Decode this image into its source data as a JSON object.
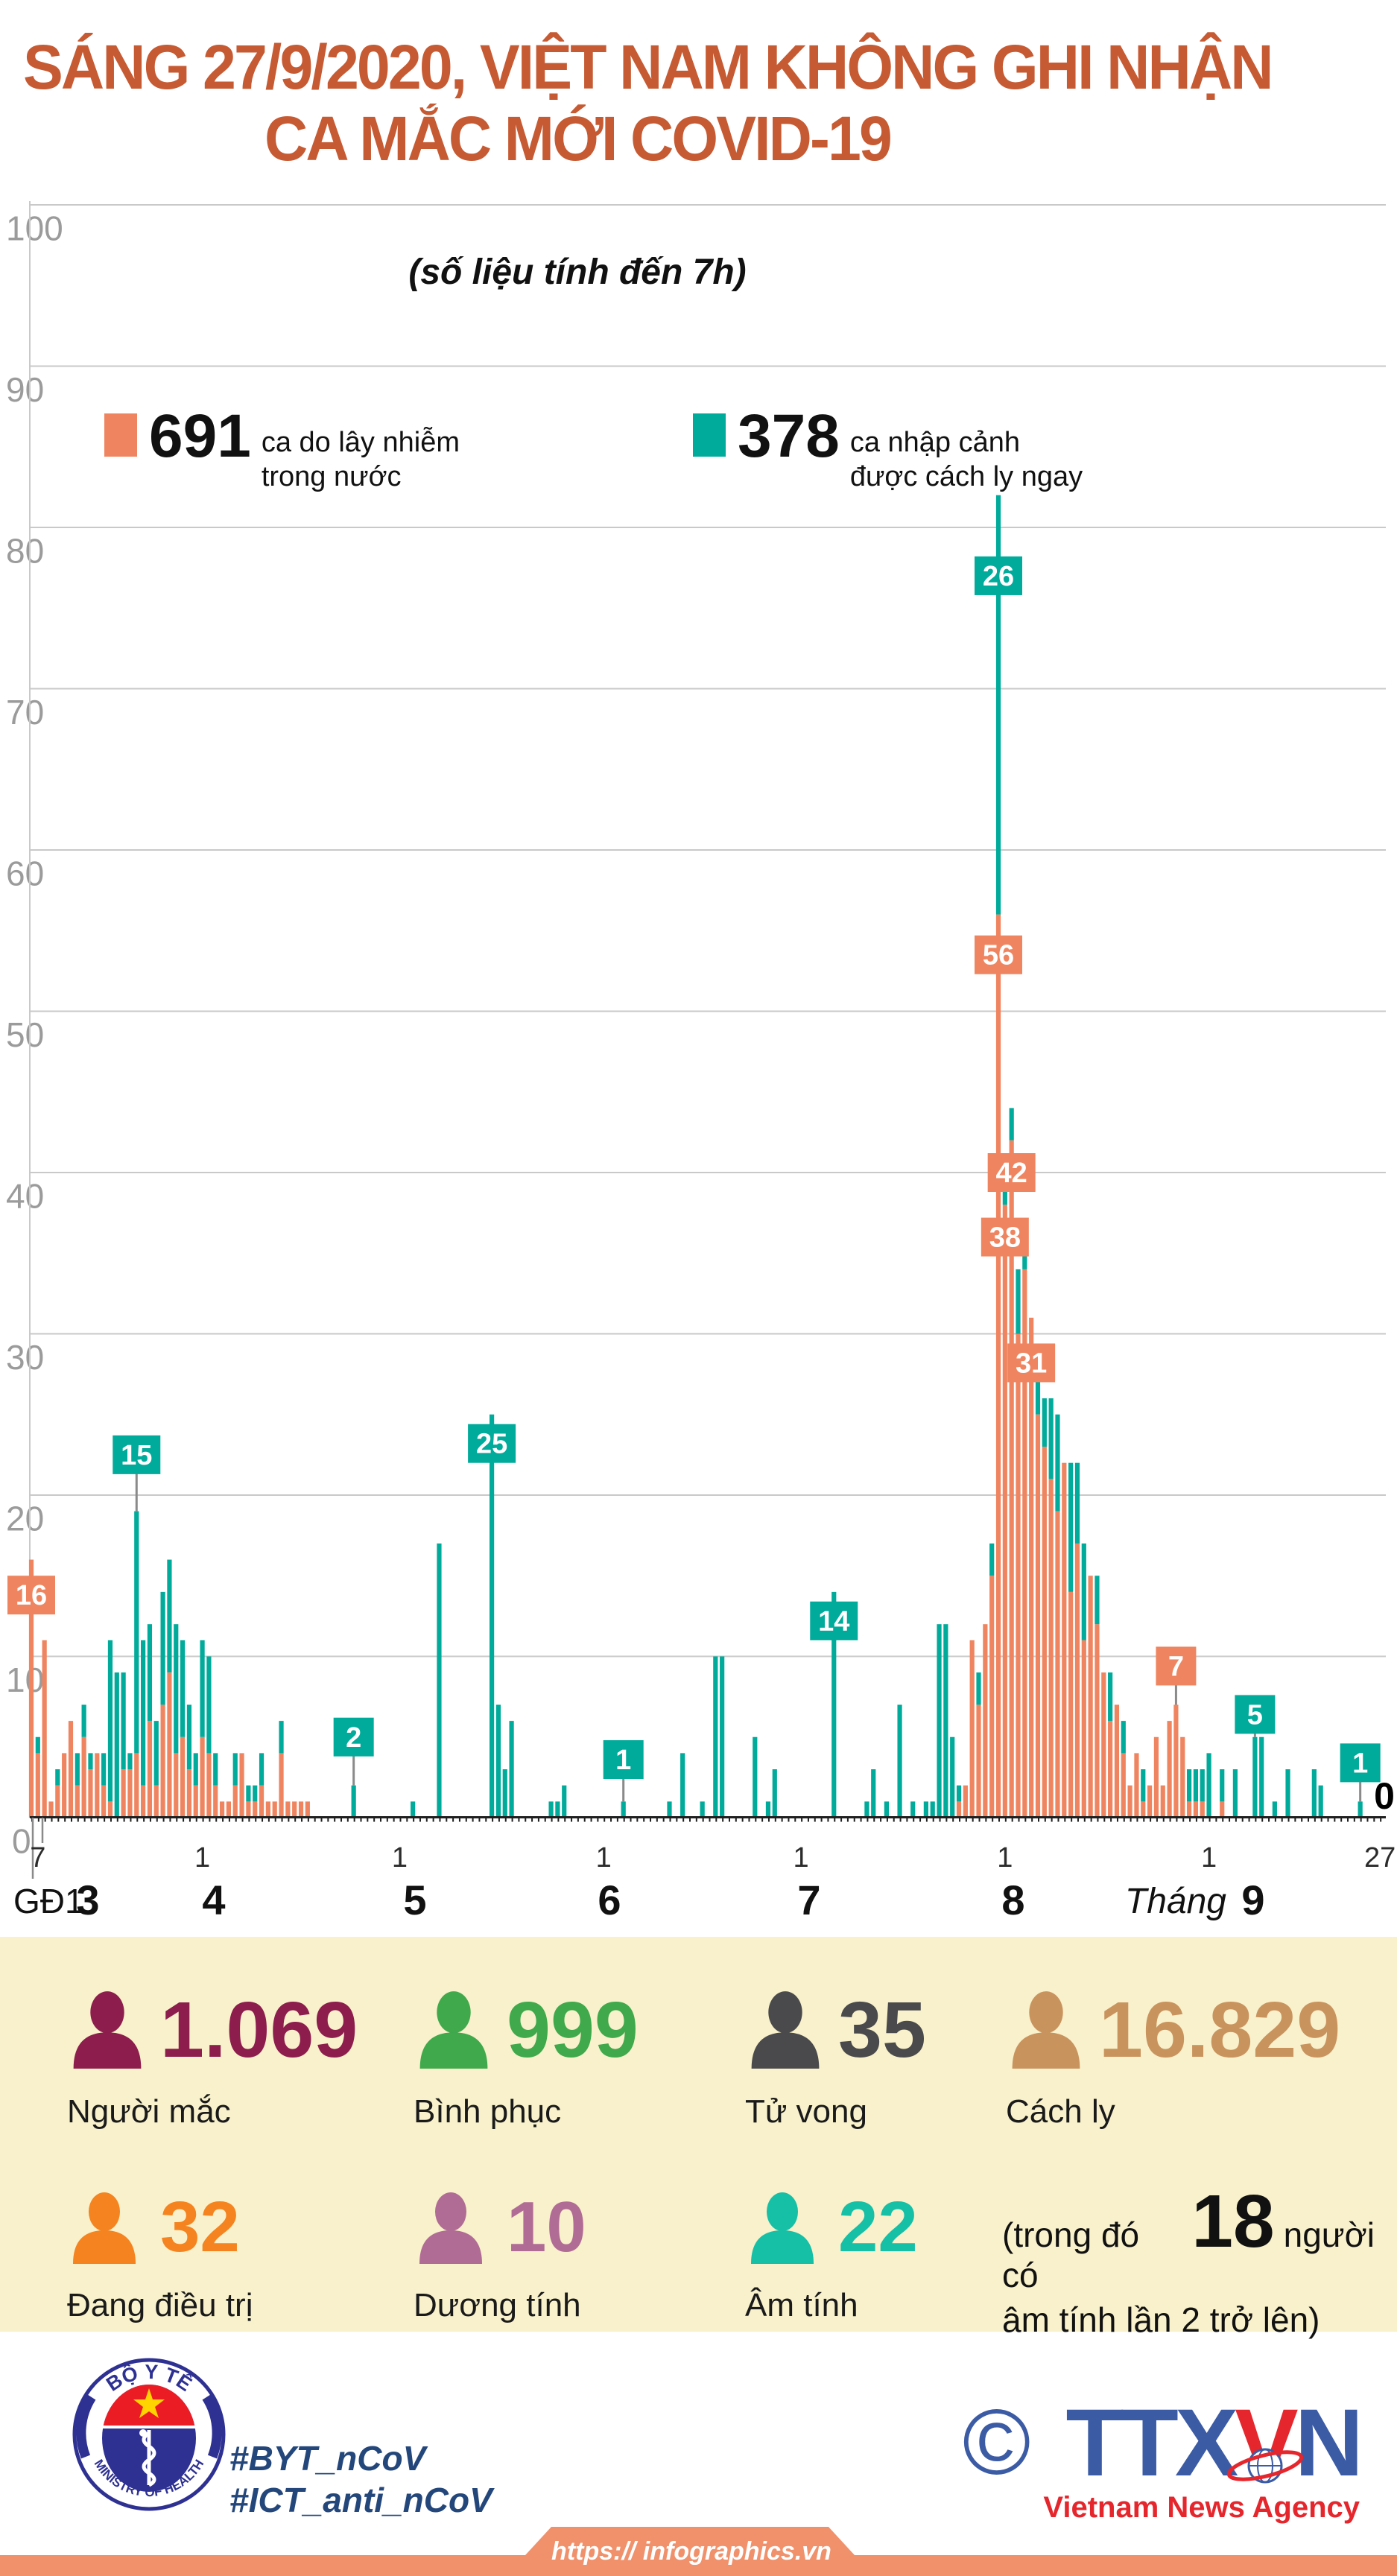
{
  "theme": {
    "title_color": "#c65a33",
    "panel_bg": "#f8f1cb",
    "strip_color": "#f0916c",
    "navy": "#24477b",
    "ttx_blue": "#3b5ba5",
    "ttx_red": "#e5262c",
    "logo_blue": "#2e3192",
    "logo_red": "#ec1c24",
    "star_yellow": "#ffd400"
  },
  "header": {
    "title_line1": "SÁNG 27/9/2020, VIỆT NAM KHÔNG GHI NHẬN",
    "title_line2": "CA MẮC MỚI COVID-19",
    "subtitle": "(số liệu tính đến 7h)"
  },
  "chart_data": {
    "type": "bar",
    "stacked": true,
    "title": "SÁNG 27/9/2020, VIỆT NAM KHÔNG GHI NHẬN CA MẮC MỚI COVID-19",
    "subtitle": "(số liệu tính đến 7h)",
    "ylim": [
      0,
      100
    ],
    "y_step": 10,
    "grid": true,
    "legend_position": "top",
    "legend": [
      {
        "value": "691",
        "text1": "ca do lây nhiễm",
        "text2": "trong nước",
        "color": "#ef8560",
        "series": "domestic"
      },
      {
        "value": "378",
        "text1": "ca nhập cảnh",
        "text2": "được cách ly ngay",
        "color": "#00ab9b",
        "series": "imported"
      }
    ],
    "x_axis": {
      "phase_label": {
        "text": "GĐ1",
        "x": 18
      },
      "month_word": {
        "text": "Tháng",
        "x": 1646
      },
      "months": [
        {
          "label": "3",
          "x": 118
        },
        {
          "label": "4",
          "x": 287
        },
        {
          "label": "5",
          "x": 557
        },
        {
          "label": "6",
          "x": 818
        },
        {
          "label": "7",
          "x": 1086
        },
        {
          "label": "8",
          "x": 1360
        },
        {
          "label": "9",
          "x": 1682
        }
      ],
      "ticks": [
        {
          "label": "7",
          "day": 1
        },
        {
          "label": "1",
          "day": 26
        },
        {
          "label": "1",
          "day": 56
        },
        {
          "label": "1",
          "day": 87
        },
        {
          "label": "1",
          "day": 117
        },
        {
          "label": "1",
          "day": 148
        },
        {
          "label": "1",
          "day": 179
        },
        {
          "label": "27",
          "day": 205
        }
      ]
    },
    "series_note": "index 0 = GĐ1 (phase-1 total), then daily values 7/3/2020 - 27/9/2020; pairs are [domestic, imported_quarantined]",
    "days": [
      [
        16,
        0
      ],
      [
        4,
        1
      ],
      [
        11,
        0
      ],
      [
        1,
        0
      ],
      [
        2,
        1
      ],
      [
        4,
        0
      ],
      [
        6,
        0
      ],
      [
        2,
        2
      ],
      [
        5,
        2
      ],
      [
        3,
        1
      ],
      [
        4,
        0
      ],
      [
        2,
        2
      ],
      [
        1,
        10
      ],
      [
        0,
        9
      ],
      [
        3,
        6
      ],
      [
        3,
        1
      ],
      [
        4,
        15
      ],
      [
        2,
        9
      ],
      [
        6,
        6
      ],
      [
        2,
        4
      ],
      [
        7,
        7
      ],
      [
        9,
        7
      ],
      [
        4,
        8
      ],
      [
        5,
        6
      ],
      [
        3,
        4
      ],
      [
        2,
        2
      ],
      [
        5,
        6
      ],
      [
        4,
        6
      ],
      [
        2,
        2
      ],
      [
        1,
        0
      ],
      [
        1,
        0
      ],
      [
        2,
        2
      ],
      [
        4,
        0
      ],
      [
        1,
        1
      ],
      [
        1,
        1
      ],
      [
        2,
        2
      ],
      [
        1,
        0
      ],
      [
        1,
        0
      ],
      [
        4,
        2
      ],
      [
        1,
        0
      ],
      [
        1,
        0
      ],
      [
        1,
        0
      ],
      [
        1,
        0
      ],
      [
        0,
        0
      ],
      [
        0,
        0
      ],
      [
        0,
        0
      ],
      [
        0,
        0
      ],
      [
        0,
        0
      ],
      [
        0,
        0
      ],
      [
        0,
        2
      ],
      [
        0,
        0
      ],
      [
        0,
        0
      ],
      [
        0,
        0
      ],
      [
        0,
        0
      ],
      [
        0,
        0
      ],
      [
        0,
        0
      ],
      [
        0,
        0
      ],
      [
        0,
        0
      ],
      [
        0,
        1
      ],
      [
        0,
        0
      ],
      [
        0,
        0
      ],
      [
        0,
        0
      ],
      [
        0,
        17
      ],
      [
        0,
        0
      ],
      [
        0,
        0
      ],
      [
        0,
        0
      ],
      [
        0,
        0
      ],
      [
        0,
        0
      ],
      [
        0,
        0
      ],
      [
        0,
        0
      ],
      [
        0,
        25
      ],
      [
        0,
        7
      ],
      [
        0,
        3
      ],
      [
        0,
        6
      ],
      [
        0,
        0
      ],
      [
        0,
        0
      ],
      [
        0,
        0
      ],
      [
        0,
        0
      ],
      [
        0,
        0
      ],
      [
        0,
        1
      ],
      [
        0,
        1
      ],
      [
        0,
        2
      ],
      [
        0,
        0
      ],
      [
        0,
        0
      ],
      [
        0,
        0
      ],
      [
        0,
        0
      ],
      [
        0,
        0
      ],
      [
        0,
        0
      ],
      [
        0,
        0
      ],
      [
        0,
        0
      ],
      [
        0,
        1
      ],
      [
        0,
        0
      ],
      [
        0,
        0
      ],
      [
        0,
        0
      ],
      [
        0,
        0
      ],
      [
        0,
        0
      ],
      [
        0,
        0
      ],
      [
        0,
        1
      ],
      [
        0,
        0
      ],
      [
        0,
        4
      ],
      [
        0,
        0
      ],
      [
        0,
        0
      ],
      [
        0,
        1
      ],
      [
        0,
        0
      ],
      [
        0,
        10
      ],
      [
        0,
        10
      ],
      [
        0,
        0
      ],
      [
        0,
        0
      ],
      [
        0,
        0
      ],
      [
        0,
        0
      ],
      [
        0,
        5
      ],
      [
        0,
        0
      ],
      [
        0,
        1
      ],
      [
        0,
        3
      ],
      [
        0,
        0
      ],
      [
        0,
        0
      ],
      [
        0,
        0
      ],
      [
        0,
        0
      ],
      [
        0,
        0
      ],
      [
        0,
        0
      ],
      [
        0,
        0
      ],
      [
        0,
        0
      ],
      [
        0,
        14
      ],
      [
        0,
        0
      ],
      [
        0,
        0
      ],
      [
        0,
        0
      ],
      [
        0,
        0
      ],
      [
        0,
        1
      ],
      [
        0,
        3
      ],
      [
        0,
        0
      ],
      [
        0,
        1
      ],
      [
        0,
        0
      ],
      [
        0,
        7
      ],
      [
        0,
        0
      ],
      [
        0,
        1
      ],
      [
        0,
        0
      ],
      [
        0,
        1
      ],
      [
        0,
        1
      ],
      [
        0,
        12
      ],
      [
        0,
        12
      ],
      [
        0,
        5
      ],
      [
        1,
        1
      ],
      [
        2,
        0
      ],
      [
        11,
        0
      ],
      [
        7,
        2
      ],
      [
        12,
        0
      ],
      [
        15,
        2
      ],
      [
        56,
        26
      ],
      [
        38,
        3
      ],
      [
        42,
        2
      ],
      [
        30,
        4
      ],
      [
        34,
        3
      ],
      [
        31,
        0
      ],
      [
        25,
        4
      ],
      [
        23,
        3
      ],
      [
        21,
        5
      ],
      [
        19,
        6
      ],
      [
        22,
        0
      ],
      [
        14,
        8
      ],
      [
        17,
        5
      ],
      [
        11,
        6
      ],
      [
        15,
        0
      ],
      [
        12,
        3
      ],
      [
        9,
        0
      ],
      [
        6,
        3
      ],
      [
        7,
        0
      ],
      [
        4,
        2
      ],
      [
        2,
        0
      ],
      [
        4,
        0
      ],
      [
        1,
        2
      ],
      [
        2,
        0
      ],
      [
        5,
        0
      ],
      [
        2,
        0
      ],
      [
        6,
        0
      ],
      [
        7,
        0
      ],
      [
        5,
        0
      ],
      [
        1,
        2
      ],
      [
        1,
        2
      ],
      [
        1,
        2
      ],
      [
        0,
        4
      ],
      [
        0,
        0
      ],
      [
        1,
        2
      ],
      [
        0,
        0
      ],
      [
        0,
        3
      ],
      [
        0,
        0
      ],
      [
        0,
        0
      ],
      [
        0,
        5
      ],
      [
        0,
        5
      ],
      [
        0,
        0
      ],
      [
        0,
        1
      ],
      [
        0,
        0
      ],
      [
        0,
        3
      ],
      [
        0,
        0
      ],
      [
        0,
        0
      ],
      [
        0,
        0
      ],
      [
        0,
        3
      ],
      [
        0,
        2
      ],
      [
        0,
        0
      ],
      [
        0,
        0
      ],
      [
        0,
        0
      ],
      [
        0,
        0
      ],
      [
        0,
        0
      ],
      [
        0,
        1
      ],
      [
        0,
        0
      ],
      [
        0,
        0
      ],
      [
        0,
        0
      ]
    ],
    "annotations": [
      {
        "i": 0,
        "label": "16",
        "series": "domestic",
        "mode": "on",
        "center": 13.8
      },
      {
        "i": 16,
        "label": "15",
        "series": "imported",
        "mode": "float",
        "center": 22.5
      },
      {
        "i": 49,
        "label": "2",
        "series": "imported",
        "mode": "float",
        "center": 5.0
      },
      {
        "i": 70,
        "label": "25",
        "series": "imported",
        "mode": "on",
        "center": 23.2
      },
      {
        "i": 90,
        "label": "1",
        "series": "imported",
        "mode": "float",
        "center": 3.6
      },
      {
        "i": 122,
        "label": "14",
        "series": "imported",
        "mode": "on",
        "center": 12.2
      },
      {
        "i": 147,
        "label": "26",
        "series": "imported",
        "mode": "on",
        "center": 77
      },
      {
        "i": 147,
        "label": "56",
        "series": "domestic",
        "mode": "on",
        "center": 53.5
      },
      {
        "i": 149,
        "label": "42",
        "series": "domestic",
        "mode": "on",
        "center": 40
      },
      {
        "i": 148,
        "label": "38",
        "series": "domestic",
        "mode": "on",
        "center": 36
      },
      {
        "i": 152,
        "label": "31",
        "series": "domestic",
        "mode": "on",
        "center": 28.2
      },
      {
        "i": 174,
        "label": "7",
        "series": "domestic",
        "mode": "float",
        "center": 9.4
      },
      {
        "i": 186,
        "label": "5",
        "series": "imported",
        "mode": "float",
        "center": 6.4
      },
      {
        "i": 202,
        "label": "1",
        "series": "imported",
        "mode": "float",
        "center": 3.4
      }
    ],
    "end_zero": {
      "text": "0",
      "x": 1858
    },
    "colors": {
      "domestic": "#ef8560",
      "imported": "#00ab9b",
      "grid": "#c9c9c9",
      "axis_text": "#9b9b9b",
      "tick_text": "#2b2b2b",
      "axis_line": "#1f1f1f",
      "connector": "#8a8a8a",
      "badge_text": "#ffffff"
    }
  },
  "stats": {
    "items": [
      {
        "value": "1.069",
        "label": "Người mắc",
        "color": "#8c1d4d"
      },
      {
        "value": "999",
        "label": "Bình phục",
        "color": "#3fa94c"
      },
      {
        "value": "35",
        "label": "Tử vong",
        "color": "#4a4a4c"
      },
      {
        "value": "16.829",
        "label": "Cách ly",
        "color": "#c9935e"
      },
      {
        "value": "32",
        "label": "Đang điều trị",
        "color": "#f5831f"
      },
      {
        "value": "10",
        "label": "Dương tính",
        "color": "#b16c95"
      },
      {
        "value": "22",
        "label": "Âm tính",
        "color": "#15c0a7"
      }
    ],
    "note": {
      "prefix": "(trong đó có",
      "big": "18",
      "suffix": "người",
      "line2": "âm tính lần 2 trở lên)"
    }
  },
  "footer": {
    "moh_top": "BỘ Y TẾ",
    "moh_bottom": "MINISTRY OF HEALTH",
    "hashtag1": "#BYT_nCoV",
    "hashtag2": "#ICT_anti_nCoV",
    "copyright": "©",
    "ttx_part1": "TTX",
    "ttx_part2": "V",
    "ttx_part3": "N",
    "ttx_sub": "Vietnam News Agency",
    "url": "https:// infographics.vn"
  }
}
